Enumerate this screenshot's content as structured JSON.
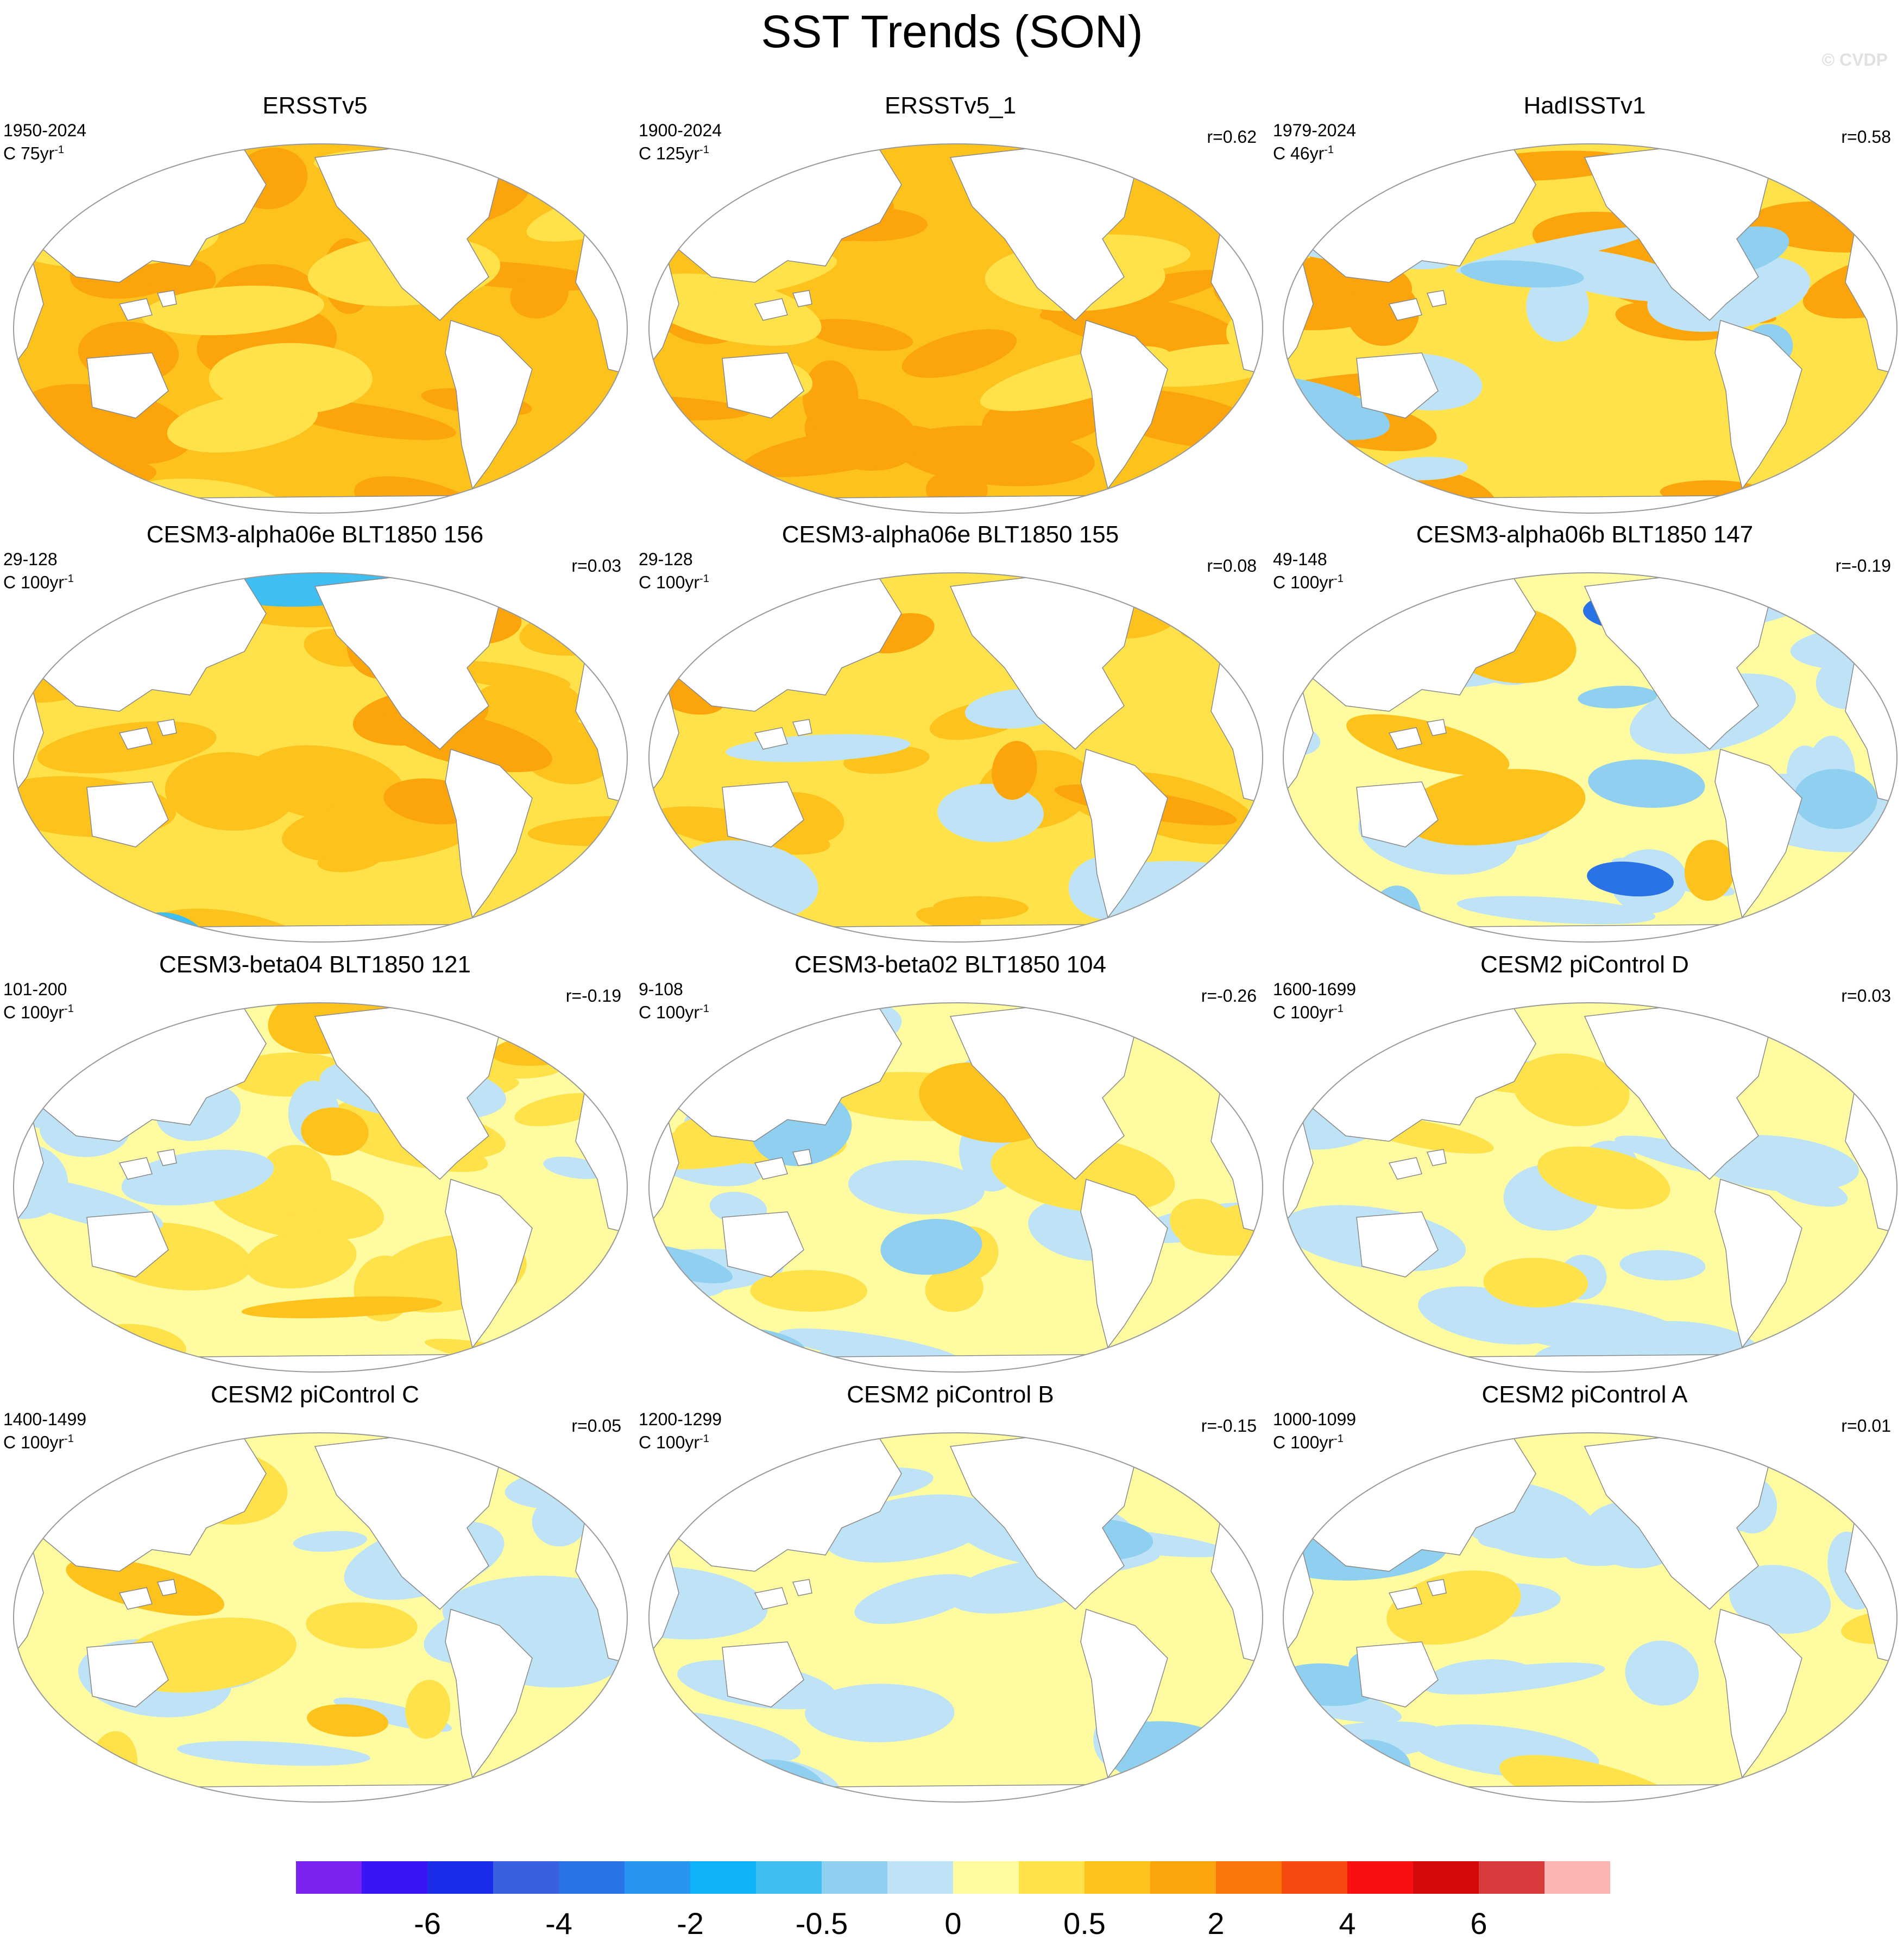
{
  "title": "SST Trends (SON)",
  "watermark": "© CVDP",
  "panels": [
    {
      "title": "ERSSTv5",
      "years": "1950-2024",
      "units": "C 75yr",
      "units_exp": "-1",
      "r": "",
      "pattern": "warmR"
    },
    {
      "title": "ERSSTv5_1",
      "years": "1900-2024",
      "units": "C 125yr",
      "units_exp": "-1",
      "r": "r=0.62",
      "pattern": "warmR"
    },
    {
      "title": "HadISSTv1",
      "years": "1979-2024",
      "units": "C 46yr",
      "units_exp": "-1",
      "r": "r=0.58",
      "pattern": "hadisst"
    },
    {
      "title": "CESM3-alpha06e BLT1850 156",
      "years": "29-128",
      "units": "C 100yr",
      "units_exp": "-1",
      "r": "r=0.03",
      "pattern": "warmA"
    },
    {
      "title": "CESM3-alpha06e BLT1850 155",
      "years": "29-128",
      "units": "C 100yr",
      "units_exp": "-1",
      "r": "r=0.08",
      "pattern": "warmB"
    },
    {
      "title": "CESM3-alpha06b BLT1850 147",
      "years": "49-148",
      "units": "C 100yr",
      "units_exp": "-1",
      "r": "r=-0.19",
      "pattern": "coolA"
    },
    {
      "title": "CESM3-beta04 BLT1850 121",
      "years": "101-200",
      "units": "C 100yr",
      "units_exp": "-1",
      "r": "r=-0.19",
      "pattern": "mixed"
    },
    {
      "title": "CESM3-beta02 BLT1850 104",
      "years": "9-108",
      "units": "C 100yr",
      "units_exp": "-1",
      "r": "r=-0.26",
      "pattern": "mixedCool"
    },
    {
      "title": "CESM2 piControl D",
      "years": "1600-1699",
      "units": "C 100yr",
      "units_exp": "-1",
      "r": "r=0.03",
      "pattern": "neutral"
    },
    {
      "title": "CESM2 piControl C",
      "years": "1400-1499",
      "units": "C 100yr",
      "units_exp": "-1",
      "r": "r=0.05",
      "pattern": "neutralC"
    },
    {
      "title": "CESM2 piControl B",
      "years": "1200-1299",
      "units": "C 100yr",
      "units_exp": "-1",
      "r": "r=-0.15",
      "pattern": "neutralB"
    },
    {
      "title": "CESM2 piControl A",
      "years": "1000-1099",
      "units": "C 100yr",
      "units_exp": "-1",
      "r": "r=0.01",
      "pattern": "neutralA"
    }
  ],
  "colorbar": {
    "colors": [
      "#7a23f0",
      "#3a14f5",
      "#1a2eea",
      "#3a5fe0",
      "#2a73e6",
      "#2895f0",
      "#10b2f7",
      "#3fbef2",
      "#8fd0f0",
      "#bfe3f6",
      "#fffba0",
      "#ffe14a",
      "#fdc21c",
      "#fca40c",
      "#fb760a",
      "#f84a10",
      "#f81010",
      "#d40a0a",
      "#d83b3b",
      "#ffb4b4"
    ],
    "labels": [
      "-6",
      "-4",
      "-2",
      "-0.5",
      "0",
      "0.5",
      "2",
      "4",
      "6"
    ]
  }
}
